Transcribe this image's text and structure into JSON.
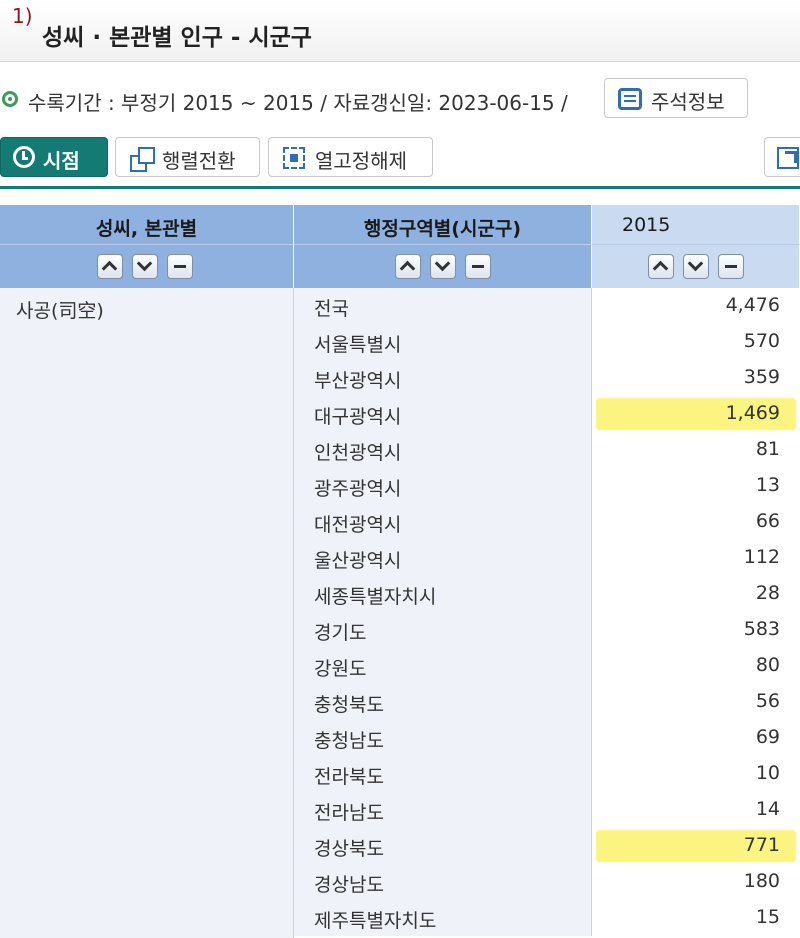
{
  "title": {
    "num": "1)",
    "text": "성씨 · 본관별 인구 - 시군구"
  },
  "meta": {
    "text": "수록기간 : 부정기 2015 ~ 2015 / 자료갱신일: 2023-06-15 /",
    "note_button": "주석정보"
  },
  "toolbar": {
    "time": "시점",
    "pivot": "행렬전환",
    "freeze": "열고정해제"
  },
  "table": {
    "headers": [
      "성씨, 본관별",
      "행정구역별(시군구)",
      "2015"
    ],
    "surname": "사공(司空)",
    "rows": [
      {
        "region": "전국",
        "value": "4,476"
      },
      {
        "region": "서울특별시",
        "value": "570"
      },
      {
        "region": "부산광역시",
        "value": "359"
      },
      {
        "region": "대구광역시",
        "value": "1,469",
        "highlight": true
      },
      {
        "region": "인천광역시",
        "value": "81"
      },
      {
        "region": "광주광역시",
        "value": "13"
      },
      {
        "region": "대전광역시",
        "value": "66"
      },
      {
        "region": "울산광역시",
        "value": "112"
      },
      {
        "region": "세종특별자치시",
        "value": "28"
      },
      {
        "region": "경기도",
        "value": "583"
      },
      {
        "region": "강원도",
        "value": "80"
      },
      {
        "region": "충청북도",
        "value": "56"
      },
      {
        "region": "충청남도",
        "value": "69"
      },
      {
        "region": "전라북도",
        "value": "10"
      },
      {
        "region": "전라남도",
        "value": "14"
      },
      {
        "region": "경상북도",
        "value": "771",
        "highlight": true
      },
      {
        "region": "경상남도",
        "value": "180"
      },
      {
        "region": "제주특별자치도",
        "value": "15"
      }
    ]
  },
  "colors": {
    "accent": "#137a74",
    "header": "#8eb1e0",
    "highlight": "#fbf36a"
  }
}
